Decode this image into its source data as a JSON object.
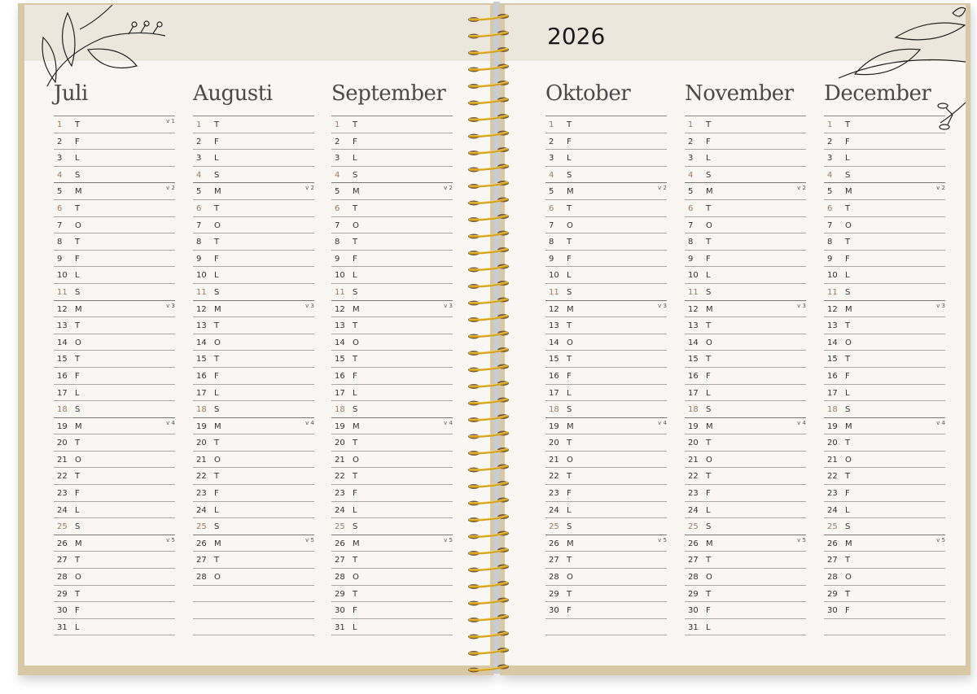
{
  "year": "2026",
  "months": [
    {
      "name": "Juli",
      "length": 31,
      "weeks": {
        "1": "v 1",
        "5": "v 2",
        "12": "v 3",
        "19": "v 4",
        "26": "v 5"
      }
    },
    {
      "name": "Augusti",
      "length": 28,
      "weeks": {
        "5": "v 2",
        "12": "v 3",
        "19": "v 4",
        "26": "v 5"
      }
    },
    {
      "name": "September",
      "length": 31,
      "weeks": {
        "5": "v 2",
        "12": "v 3",
        "19": "v 4",
        "26": "v 5"
      }
    },
    {
      "name": "Oktober",
      "length": 30,
      "weeks": {
        "5": "v 2",
        "12": "v 3",
        "19": "v 4",
        "26": "v 5"
      }
    },
    {
      "name": "November",
      "length": 31,
      "weeks": {
        "5": "v 2",
        "12": "v 3",
        "19": "v 4",
        "26": "v 5"
      }
    },
    {
      "name": "December",
      "length": 30,
      "weeks": {
        "5": "v 2",
        "12": "v 3",
        "19": "v 4",
        "26": "v 5"
      }
    }
  ],
  "weekdays": [
    "T",
    "F",
    "L",
    "S",
    "M",
    "T",
    "O",
    "T",
    "F",
    "L",
    "S",
    "M",
    "T",
    "O",
    "T",
    "F",
    "L",
    "S",
    "M",
    "T",
    "O",
    "T",
    "F",
    "L",
    "S",
    "M",
    "T",
    "O",
    "T",
    "F",
    "L"
  ],
  "highlighted_days": [
    1,
    4,
    6,
    11,
    18,
    25
  ],
  "colors": {
    "page": "#f8f7f3",
    "band": "#ece7dc",
    "cover": "#d8c9a6",
    "highlight": "#a07a62",
    "spiral": "#d4a21a"
  }
}
